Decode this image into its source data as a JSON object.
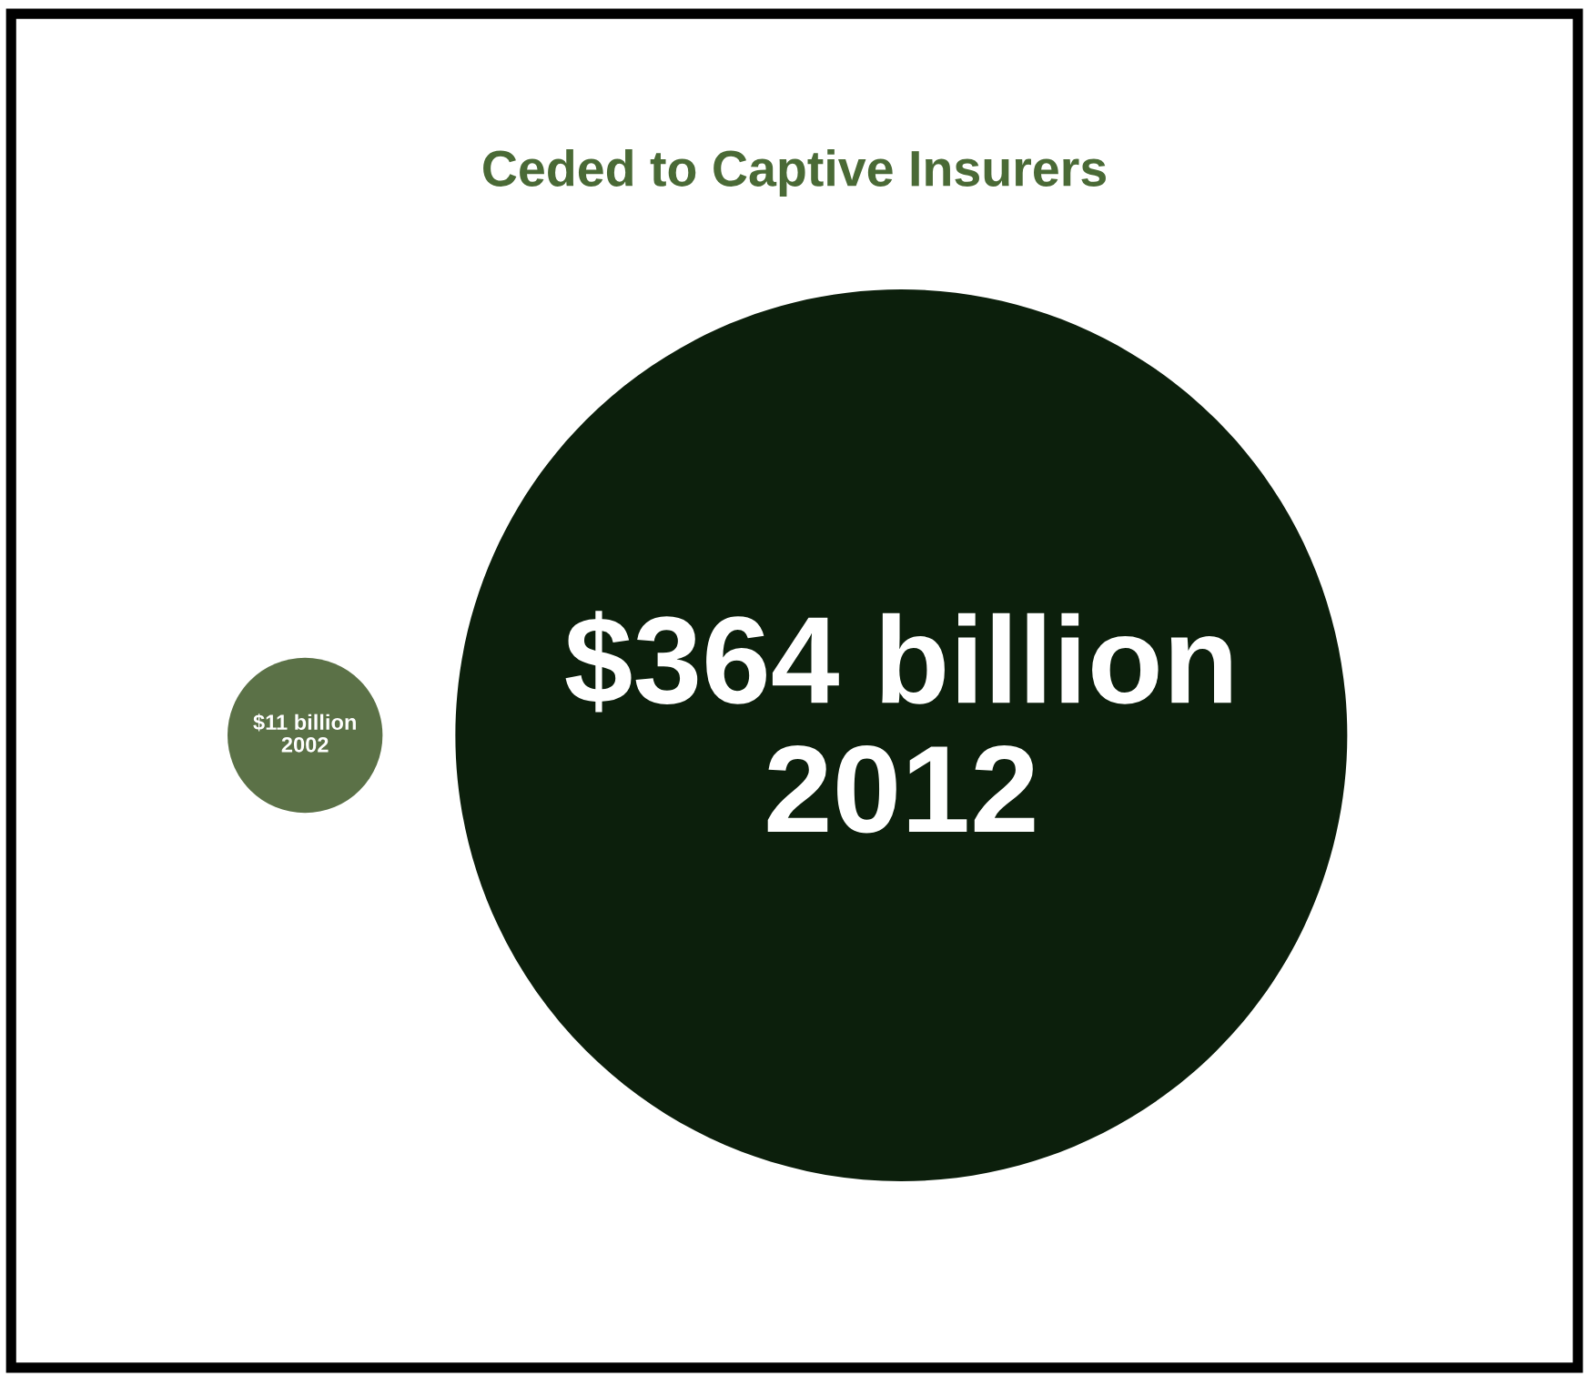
{
  "chart_data": {
    "type": "other",
    "title": "Ceded to Captive Insurers",
    "categories": [
      "2002",
      "2012"
    ],
    "values": [
      11,
      364
    ],
    "value_labels": [
      "$11 billion",
      "$364 billion"
    ],
    "colors": [
      "#5b7147",
      "#0c1f0c"
    ]
  }
}
